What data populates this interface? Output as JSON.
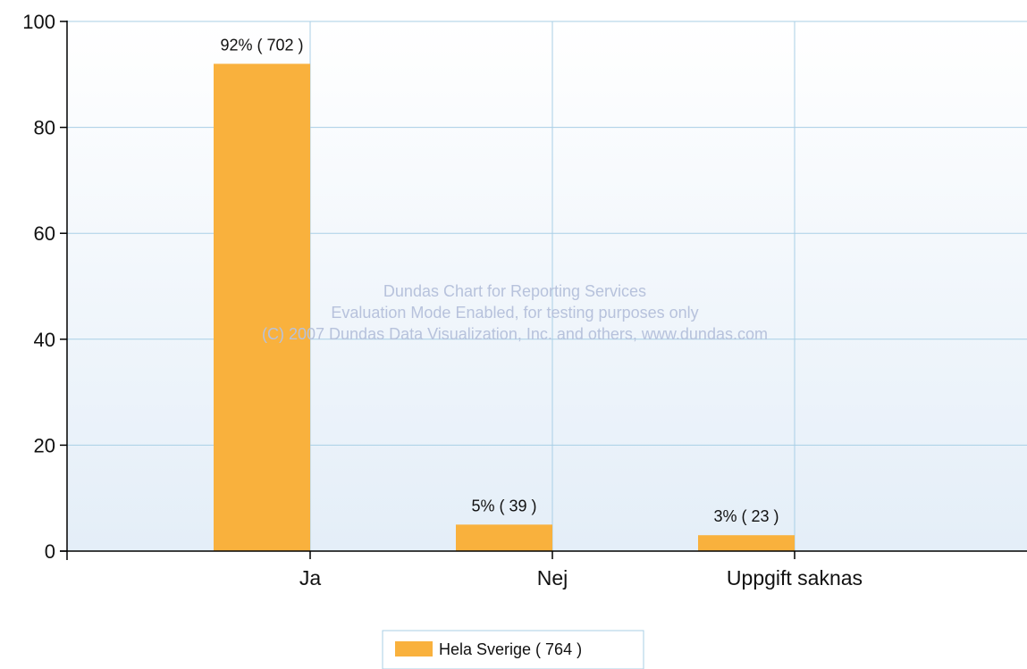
{
  "chart_data": {
    "type": "bar",
    "title": "",
    "xlabel": "",
    "ylabel": "",
    "categories": [
      "Ja",
      "Nej",
      "Uppgift saknas"
    ],
    "series": [
      {
        "name": "Hela Sverige  ( 764 )",
        "color": "#f9b13d",
        "values": [
          92,
          5,
          3
        ],
        "labels": [
          "92% ( 702 )",
          "5% ( 39 )",
          "3% ( 23 )"
        ]
      }
    ],
    "ylim": [
      0,
      100
    ],
    "y_ticks": [
      0,
      20,
      40,
      60,
      80,
      100
    ],
    "y_tick_labels": [
      "0",
      "20",
      "40",
      "60",
      "80",
      "100"
    ],
    "grid": true,
    "legend_position": "bottom-center"
  },
  "watermark": {
    "lines": [
      "Dundas Chart for Reporting Services",
      "Evaluation Mode Enabled, for testing purposes only",
      "(C) 2007 Dundas Data Visualization, Inc. and others, www.dundas.com"
    ]
  },
  "colors": {
    "plot_bg_top": "#ffffff",
    "plot_bg_bottom": "#e4eef8",
    "grid": "#a9cfe6",
    "axis": "#000000",
    "bar": "#f9b13d",
    "legend_border": "#a9cfe6"
  }
}
